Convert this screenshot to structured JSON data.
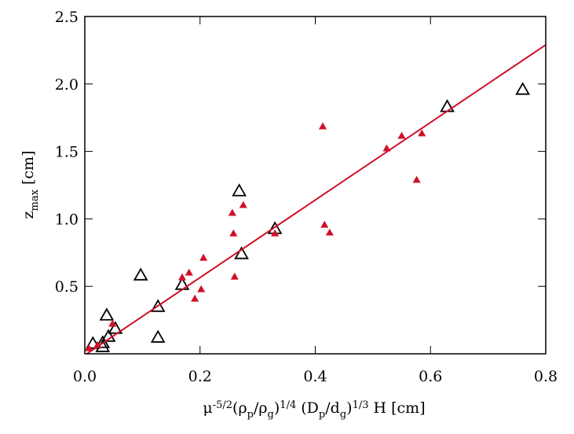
{
  "chart_data": {
    "type": "scatter",
    "y_label": [
      {
        "t": "z"
      },
      {
        "t": "max",
        "s": "sub"
      },
      {
        "t": " [cm]"
      }
    ],
    "x_label": [
      {
        "t": "μ"
      },
      {
        "t": "-5/2",
        "s": "sup"
      },
      {
        "t": "(ρ"
      },
      {
        "t": "p",
        "s": "sub"
      },
      {
        "t": "/ρ"
      },
      {
        "t": "g",
        "s": "sub"
      },
      {
        "t": ")"
      },
      {
        "t": "1/4",
        "s": "sup"
      },
      {
        "t": " (D"
      },
      {
        "t": "p",
        "s": "sub"
      },
      {
        "t": "/d"
      },
      {
        "t": "g",
        "s": "sub"
      },
      {
        "t": ")"
      },
      {
        "t": "1/3",
        "s": "sup"
      },
      {
        "t": " H [cm]"
      }
    ],
    "xlim": [
      0,
      0.8
    ],
    "ylim": [
      0,
      2.5
    ],
    "xticks": [
      {
        "value": 0,
        "label": "0.0"
      },
      0.2,
      0.4,
      0.6,
      0.8
    ],
    "yticks": [
      0.5,
      {
        "value": 1,
        "label": "1.0"
      },
      1.5,
      {
        "value": 2,
        "label": "2.0"
      },
      2.5
    ],
    "series": [
      {
        "color": "#000000",
        "marker": "open-triangle",
        "x": [
          0.014,
          0.031,
          0.031,
          0.038,
          0.041,
          0.053,
          0.097,
          0.127,
          0.127,
          0.169,
          0.268,
          0.272,
          0.33,
          0.629,
          0.76
        ],
        "values": [
          0.076,
          0.082,
          0.052,
          0.286,
          0.128,
          0.187,
          0.583,
          0.35,
          0.122,
          0.513,
          1.207,
          0.741,
          0.927,
          1.831,
          1.959
        ]
      },
      {
        "color": "#d0102a",
        "marker": "filled-triangle",
        "x": [
          0.007,
          0.022,
          0.048,
          0.169,
          0.181,
          0.191,
          0.202,
          0.206,
          0.256,
          0.258,
          0.26,
          0.275,
          0.33,
          0.413,
          0.416,
          0.425,
          0.524,
          0.55,
          0.576,
          0.585
        ],
        "values": [
          0.041,
          0.064,
          0.222,
          0.566,
          0.601,
          0.408,
          0.478,
          0.711,
          1.044,
          0.892,
          0.571,
          1.102,
          0.892,
          1.685,
          0.956,
          0.898,
          1.522,
          1.615,
          1.289,
          1.633
        ]
      },
      {
        "color": "#d0102a",
        "marker": "line",
        "x": [
          0,
          0.8
        ],
        "values": [
          -0.01,
          2.29
        ]
      }
    ]
  }
}
